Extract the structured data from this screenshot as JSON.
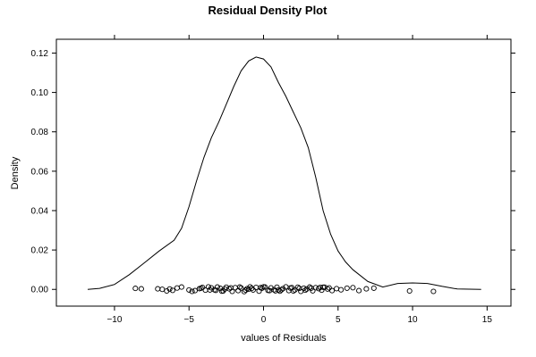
{
  "chart_data": {
    "type": "line",
    "title": "Residual Density Plot",
    "xlabel": "values of Residuals",
    "ylabel": "Density",
    "xlim": [
      -13.9,
      16.6
    ],
    "ylim": [
      -0.0085,
      0.127
    ],
    "xticks": [
      -10,
      -5,
      0,
      5,
      10,
      15
    ],
    "xtick_labels": [
      "−10",
      "−5",
      "0",
      "5",
      "10",
      "15"
    ],
    "yticks": [
      0.0,
      0.02,
      0.04,
      0.06,
      0.08,
      0.1,
      0.12
    ],
    "ytick_labels": [
      "0.00",
      "0.02",
      "0.04",
      "0.06",
      "0.08",
      "0.10",
      "0.12"
    ],
    "grid": false,
    "legend": "none",
    "line_color": "#000000",
    "density_curve": {
      "x": [
        -11.8,
        -11.0,
        -10.0,
        -9.0,
        -8.0,
        -7.0,
        -6.0,
        -5.5,
        -5.0,
        -4.5,
        -4.0,
        -3.5,
        -3.0,
        -2.5,
        -2.0,
        -1.5,
        -1.0,
        -0.5,
        0.0,
        0.5,
        1.0,
        1.5,
        2.0,
        2.5,
        3.0,
        3.5,
        4.0,
        4.5,
        5.0,
        5.5,
        6.0,
        7.0,
        8.0,
        9.0,
        10.0,
        11.0,
        12.0,
        13.0,
        14.6
      ],
      "y": [
        0.0,
        0.0005,
        0.0025,
        0.0075,
        0.0135,
        0.0195,
        0.025,
        0.031,
        0.042,
        0.055,
        0.067,
        0.077,
        0.085,
        0.094,
        0.103,
        0.111,
        0.116,
        0.118,
        0.117,
        0.113,
        0.105,
        0.098,
        0.09,
        0.082,
        0.072,
        0.057,
        0.04,
        0.028,
        0.0195,
        0.014,
        0.01,
        0.004,
        0.0012,
        0.003,
        0.0033,
        0.003,
        0.0015,
        0.0002,
        0.0
      ]
    },
    "residual_rug": {
      "x": [
        -8.6,
        -8.2,
        -7.1,
        -6.8,
        -6.5,
        -6.3,
        -6.1,
        -5.8,
        -5.5,
        -5.0,
        -4.8,
        -4.6,
        -4.3,
        -4.1,
        -3.9,
        -3.7,
        -3.5,
        -3.3,
        -3.1,
        -2.9,
        -2.7,
        -2.5,
        -2.3,
        -2.1,
        -1.9,
        -1.7,
        -1.5,
        -1.3,
        -1.1,
        -0.9,
        -0.7,
        -0.5,
        -0.3,
        -0.1,
        0.1,
        0.3,
        0.5,
        0.7,
        0.9,
        1.1,
        1.3,
        1.5,
        1.7,
        1.9,
        2.1,
        2.3,
        2.5,
        2.7,
        2.9,
        3.1,
        3.3,
        3.5,
        3.7,
        3.9,
        4.1,
        4.3,
        4.6,
        4.9,
        5.2,
        5.6,
        6.0,
        6.4,
        6.9,
        7.4,
        9.8,
        11.4,
        -4.2,
        -3.2,
        -2.2,
        -1.2,
        -0.2,
        0.8,
        1.8,
        2.8,
        3.8,
        -3.6,
        -1.6,
        0.4,
        2.4,
        4.4,
        -2.8,
        -0.8,
        1.2,
        3.2,
        -2.6,
        0.0,
        2.0,
        4.0,
        -1.0,
        1.0
      ],
      "y": [
        0.0005,
        0.0003,
        0.0003,
        0.0,
        -0.0008,
        0.0002,
        -0.0005,
        0.0007,
        0.0012,
        -0.0003,
        -0.001,
        -0.0006,
        0.0004,
        0.001,
        -0.0004,
        0.0013,
        0.0008,
        -0.0002,
        0.0012,
        0.0005,
        -0.0008,
        0.0011,
        0.0003,
        -0.001,
        0.0009,
        -0.0006,
        0.0007,
        -0.0011,
        0.0004,
        0.0013,
        -0.0003,
        0.001,
        -0.0009,
        0.0006,
        0.0012,
        -0.0005,
        0.0008,
        -0.0002,
        0.0011,
        -0.0009,
        0.0004,
        0.0013,
        -0.0006,
        0.0009,
        -0.0003,
        0.0011,
        -0.001,
        0.0006,
        0.0002,
        0.0012,
        -0.0007,
        0.0009,
        0.0004,
        -0.0004,
        0.0011,
        0.0002,
        -0.0006,
        0.0004,
        -0.0002,
        0.0006,
        0.0009,
        -0.0006,
        0.0003,
        0.0006,
        -0.0008,
        -0.001,
        0.0006,
        -0.0005,
        0.0008,
        -0.0004,
        0.0009,
        -0.0007,
        0.0007,
        -0.0004,
        0.001,
        -0.0003,
        0.0012,
        -0.0006,
        0.0005,
        0.0008,
        -0.0009,
        0.0005,
        -0.0002,
        0.0006,
        0.0002,
        0.0013,
        -0.0008,
        0.0011,
        0.0001,
        -0.0003
      ]
    }
  }
}
